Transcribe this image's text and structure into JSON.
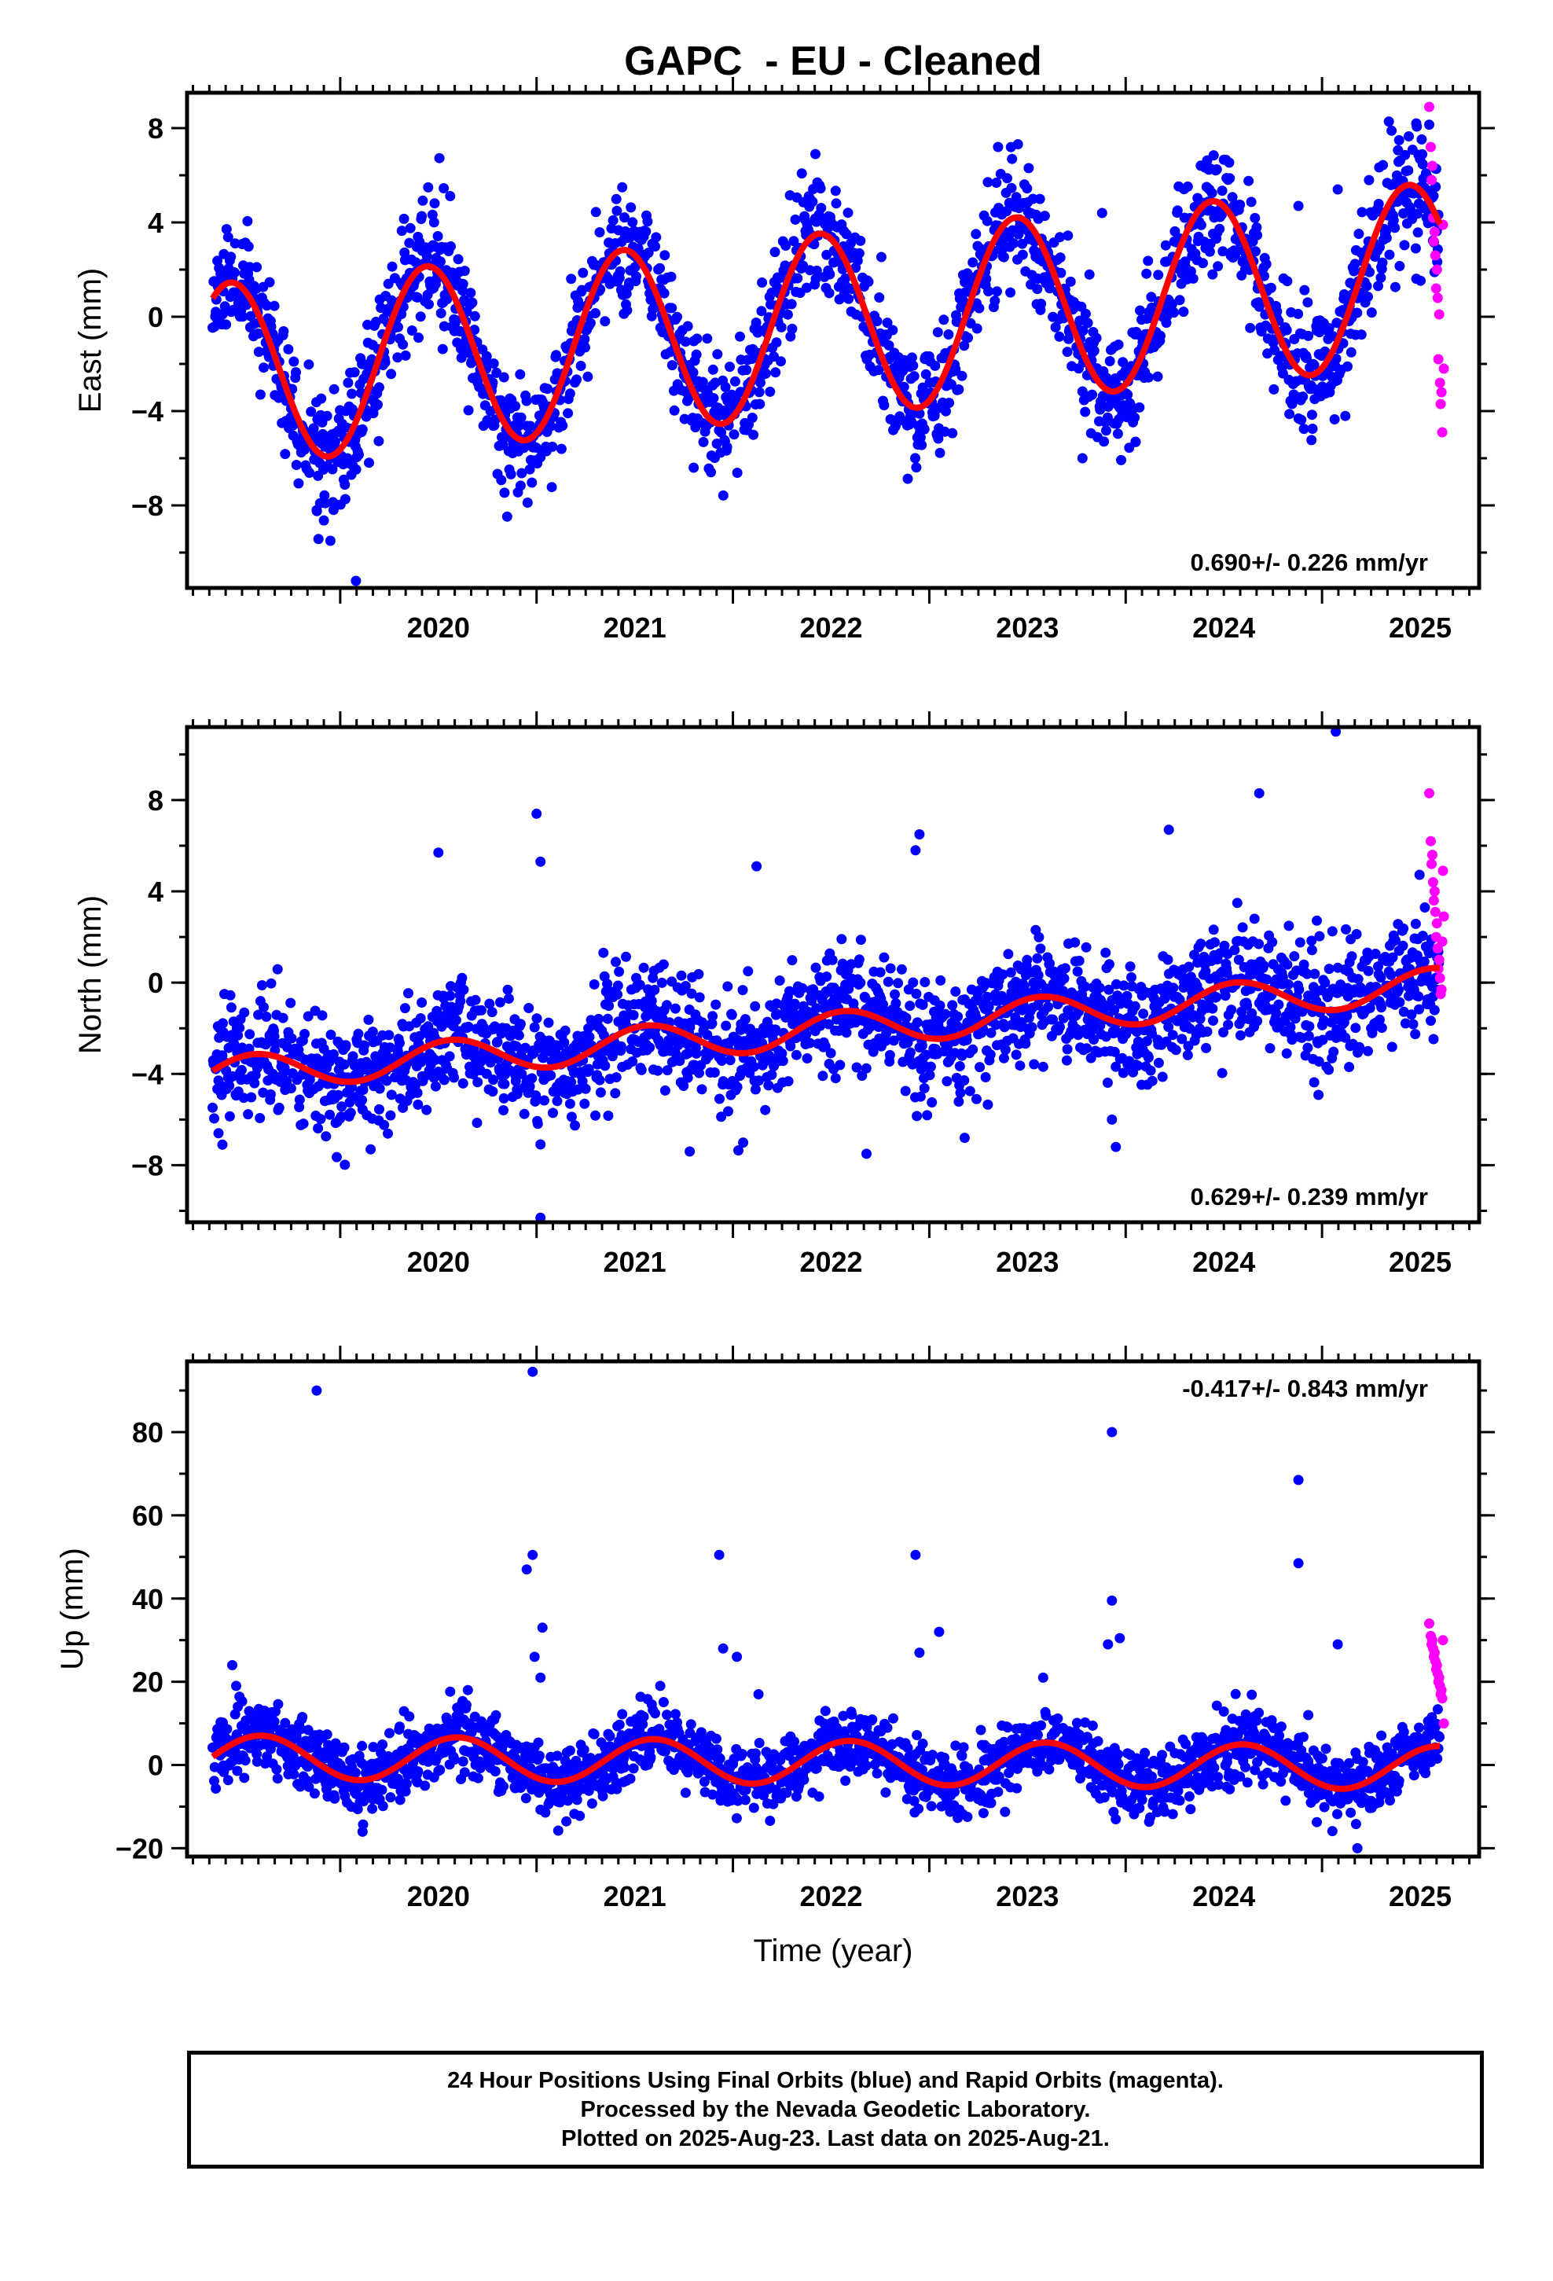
{
  "title": "GAPC  - EU - Cleaned",
  "xlabel": "Time (year)",
  "footer": {
    "line1": "24 Hour Positions Using Final Orbits (blue) and Rapid Orbits (magenta).",
    "line2": "Processed by the Nevada Geodetic Laboratory.",
    "line3": "Plotted on 2025-Aug-23. Last data on 2025-Aug-21."
  },
  "colors": {
    "final": "#0000ff",
    "rapid": "#ff00ff",
    "model": "#ff0000",
    "frame": "#000000"
  },
  "chart_data": [
    {
      "type": "scatter",
      "ylabel": "East (mm)",
      "rate": "0.690+/- 0.226 mm/yr",
      "rate_position": "bottom-right",
      "xlim": [
        2019.22,
        2025.8
      ],
      "ylim": [
        -11.5,
        9.5
      ],
      "xticks": [
        2020,
        2021,
        2022,
        2023,
        2024,
        2025
      ],
      "yticks": [
        8,
        4,
        0,
        -4,
        -8
      ],
      "ytick_labels": [
        "8",
        "4",
        "0",
        "−4",
        "−8"
      ],
      "start": 2019.35,
      "end": 2025.6,
      "trend": {
        "intercept": -0.3,
        "slope": 0.69
      },
      "seasonal": {
        "sin": 1.4,
        "cos": -3.6
      },
      "noise_sd": 1.3,
      "seed": 11,
      "outliers": [
        [
          2019.95,
          -9.5
        ],
        [
          2020.08,
          -11.2
        ],
        [
          2019.88,
          -8.2
        ],
        [
          2023.35,
          7.2
        ],
        [
          2022.42,
          6.9
        ],
        [
          2025.08,
          5.4
        ],
        [
          2023.88,
          4.4
        ],
        [
          2024.88,
          4.7
        ],
        [
          2025.48,
          8.2
        ],
        [
          2023.78,
          -6.0
        ],
        [
          2021.8,
          -6.4
        ],
        [
          2024.05,
          -5.3
        ]
      ],
      "rapid": {
        "x0": 2025.55,
        "x1": 2025.62,
        "values": [
          8.9,
          7.2,
          6.4,
          5.8,
          4.2,
          3.6,
          3.2,
          2.6,
          2.0,
          1.2,
          0.8,
          0.1,
          -1.8,
          -2.8,
          -3.2,
          -3.7,
          -4.9,
          -2.2,
          3.9
        ]
      }
    },
    {
      "type": "scatter",
      "ylabel": "North (mm)",
      "rate": "0.629+/- 0.239 mm/yr",
      "rate_position": "bottom-right",
      "xlim": [
        2019.22,
        2025.8
      ],
      "ylim": [
        -10.5,
        11.2
      ],
      "xticks": [
        2020,
        2021,
        2022,
        2023,
        2024,
        2025
      ],
      "yticks": [
        8,
        4,
        0,
        -4,
        -8
      ],
      "ytick_labels": [
        "8",
        "4",
        "0",
        "−4",
        "−8"
      ],
      "start": 2019.35,
      "end": 2025.6,
      "trend": {
        "intercept": -2.05,
        "slope": 0.629
      },
      "seasonal": {
        "sin": -0.3,
        "cos": -0.7
      },
      "noise_sd": 1.25,
      "seed": 23,
      "outliers": [
        [
          2021.0,
          7.4
        ],
        [
          2021.02,
          5.3
        ],
        [
          2021.02,
          -10.3
        ],
        [
          2022.95,
          6.5
        ],
        [
          2022.93,
          5.8
        ],
        [
          2025.07,
          11.0
        ],
        [
          2024.68,
          8.3
        ],
        [
          2023.18,
          -6.8
        ],
        [
          2023.95,
          -7.2
        ],
        [
          2023.93,
          -6.0
        ],
        [
          2021.78,
          -7.4
        ],
        [
          2022.68,
          -7.5
        ],
        [
          2020.5,
          5.7
        ],
        [
          2019.4,
          -7.1
        ],
        [
          2019.38,
          -6.6
        ],
        [
          2022.12,
          5.1
        ],
        [
          2024.22,
          6.7
        ]
      ],
      "rapid": {
        "x0": 2025.55,
        "x1": 2025.62,
        "values": [
          8.3,
          6.2,
          5.6,
          5.2,
          4.4,
          4.0,
          3.6,
          3.1,
          2.6,
          2.0,
          1.5,
          1.0,
          0.6,
          0.2,
          -0.3,
          -0.5,
          1.8,
          2.9,
          4.9
        ]
      }
    },
    {
      "type": "scatter",
      "ylabel": "Up (mm)",
      "rate": "-0.417+/- 0.843 mm/yr",
      "rate_position": "top-right",
      "xlim": [
        2019.22,
        2025.8
      ],
      "ylim": [
        -22,
        97
      ],
      "xticks": [
        2020,
        2021,
        2022,
        2023,
        2024,
        2025
      ],
      "yticks": [
        80,
        60,
        40,
        20,
        0,
        -20
      ],
      "ytick_labels": [
        "80",
        "60",
        "40",
        "20",
        "0",
        "−20"
      ],
      "start": 2019.35,
      "end": 2025.6,
      "trend": {
        "intercept": 0.6,
        "slope": -0.417
      },
      "seasonal": {
        "sin": -3.0,
        "cos": -4.3
      },
      "noise_sd": 4.0,
      "seed": 37,
      "outliers": [
        [
          2019.88,
          90
        ],
        [
          2020.98,
          94.5
        ],
        [
          2020.98,
          50.5
        ],
        [
          2020.95,
          47
        ],
        [
          2021.03,
          33
        ],
        [
          2021.02,
          21
        ],
        [
          2020.99,
          26
        ],
        [
          2021.93,
          50.5
        ],
        [
          2021.95,
          28
        ],
        [
          2022.02,
          26
        ],
        [
          2022.13,
          17
        ],
        [
          2022.93,
          50.5
        ],
        [
          2022.95,
          27
        ],
        [
          2023.05,
          32
        ],
        [
          2023.93,
          80
        ],
        [
          2023.93,
          39.5
        ],
        [
          2023.97,
          30.5
        ],
        [
          2023.91,
          29
        ],
        [
          2024.88,
          68.5
        ],
        [
          2024.88,
          48.5
        ],
        [
          2025.08,
          29
        ],
        [
          2024.93,
          12
        ],
        [
          2019.45,
          24
        ],
        [
          2019.47,
          19
        ],
        [
          2020.65,
          18
        ],
        [
          2021.63,
          19
        ],
        [
          2023.58,
          21
        ],
        [
          2025.18,
          -20
        ]
      ],
      "rapid": {
        "x0": 2025.55,
        "x1": 2025.62,
        "values": [
          34,
          31,
          30,
          29,
          28,
          27,
          26,
          25,
          24,
          23,
          22,
          21,
          20,
          19,
          18,
          17,
          16,
          10,
          30
        ]
      }
    }
  ]
}
